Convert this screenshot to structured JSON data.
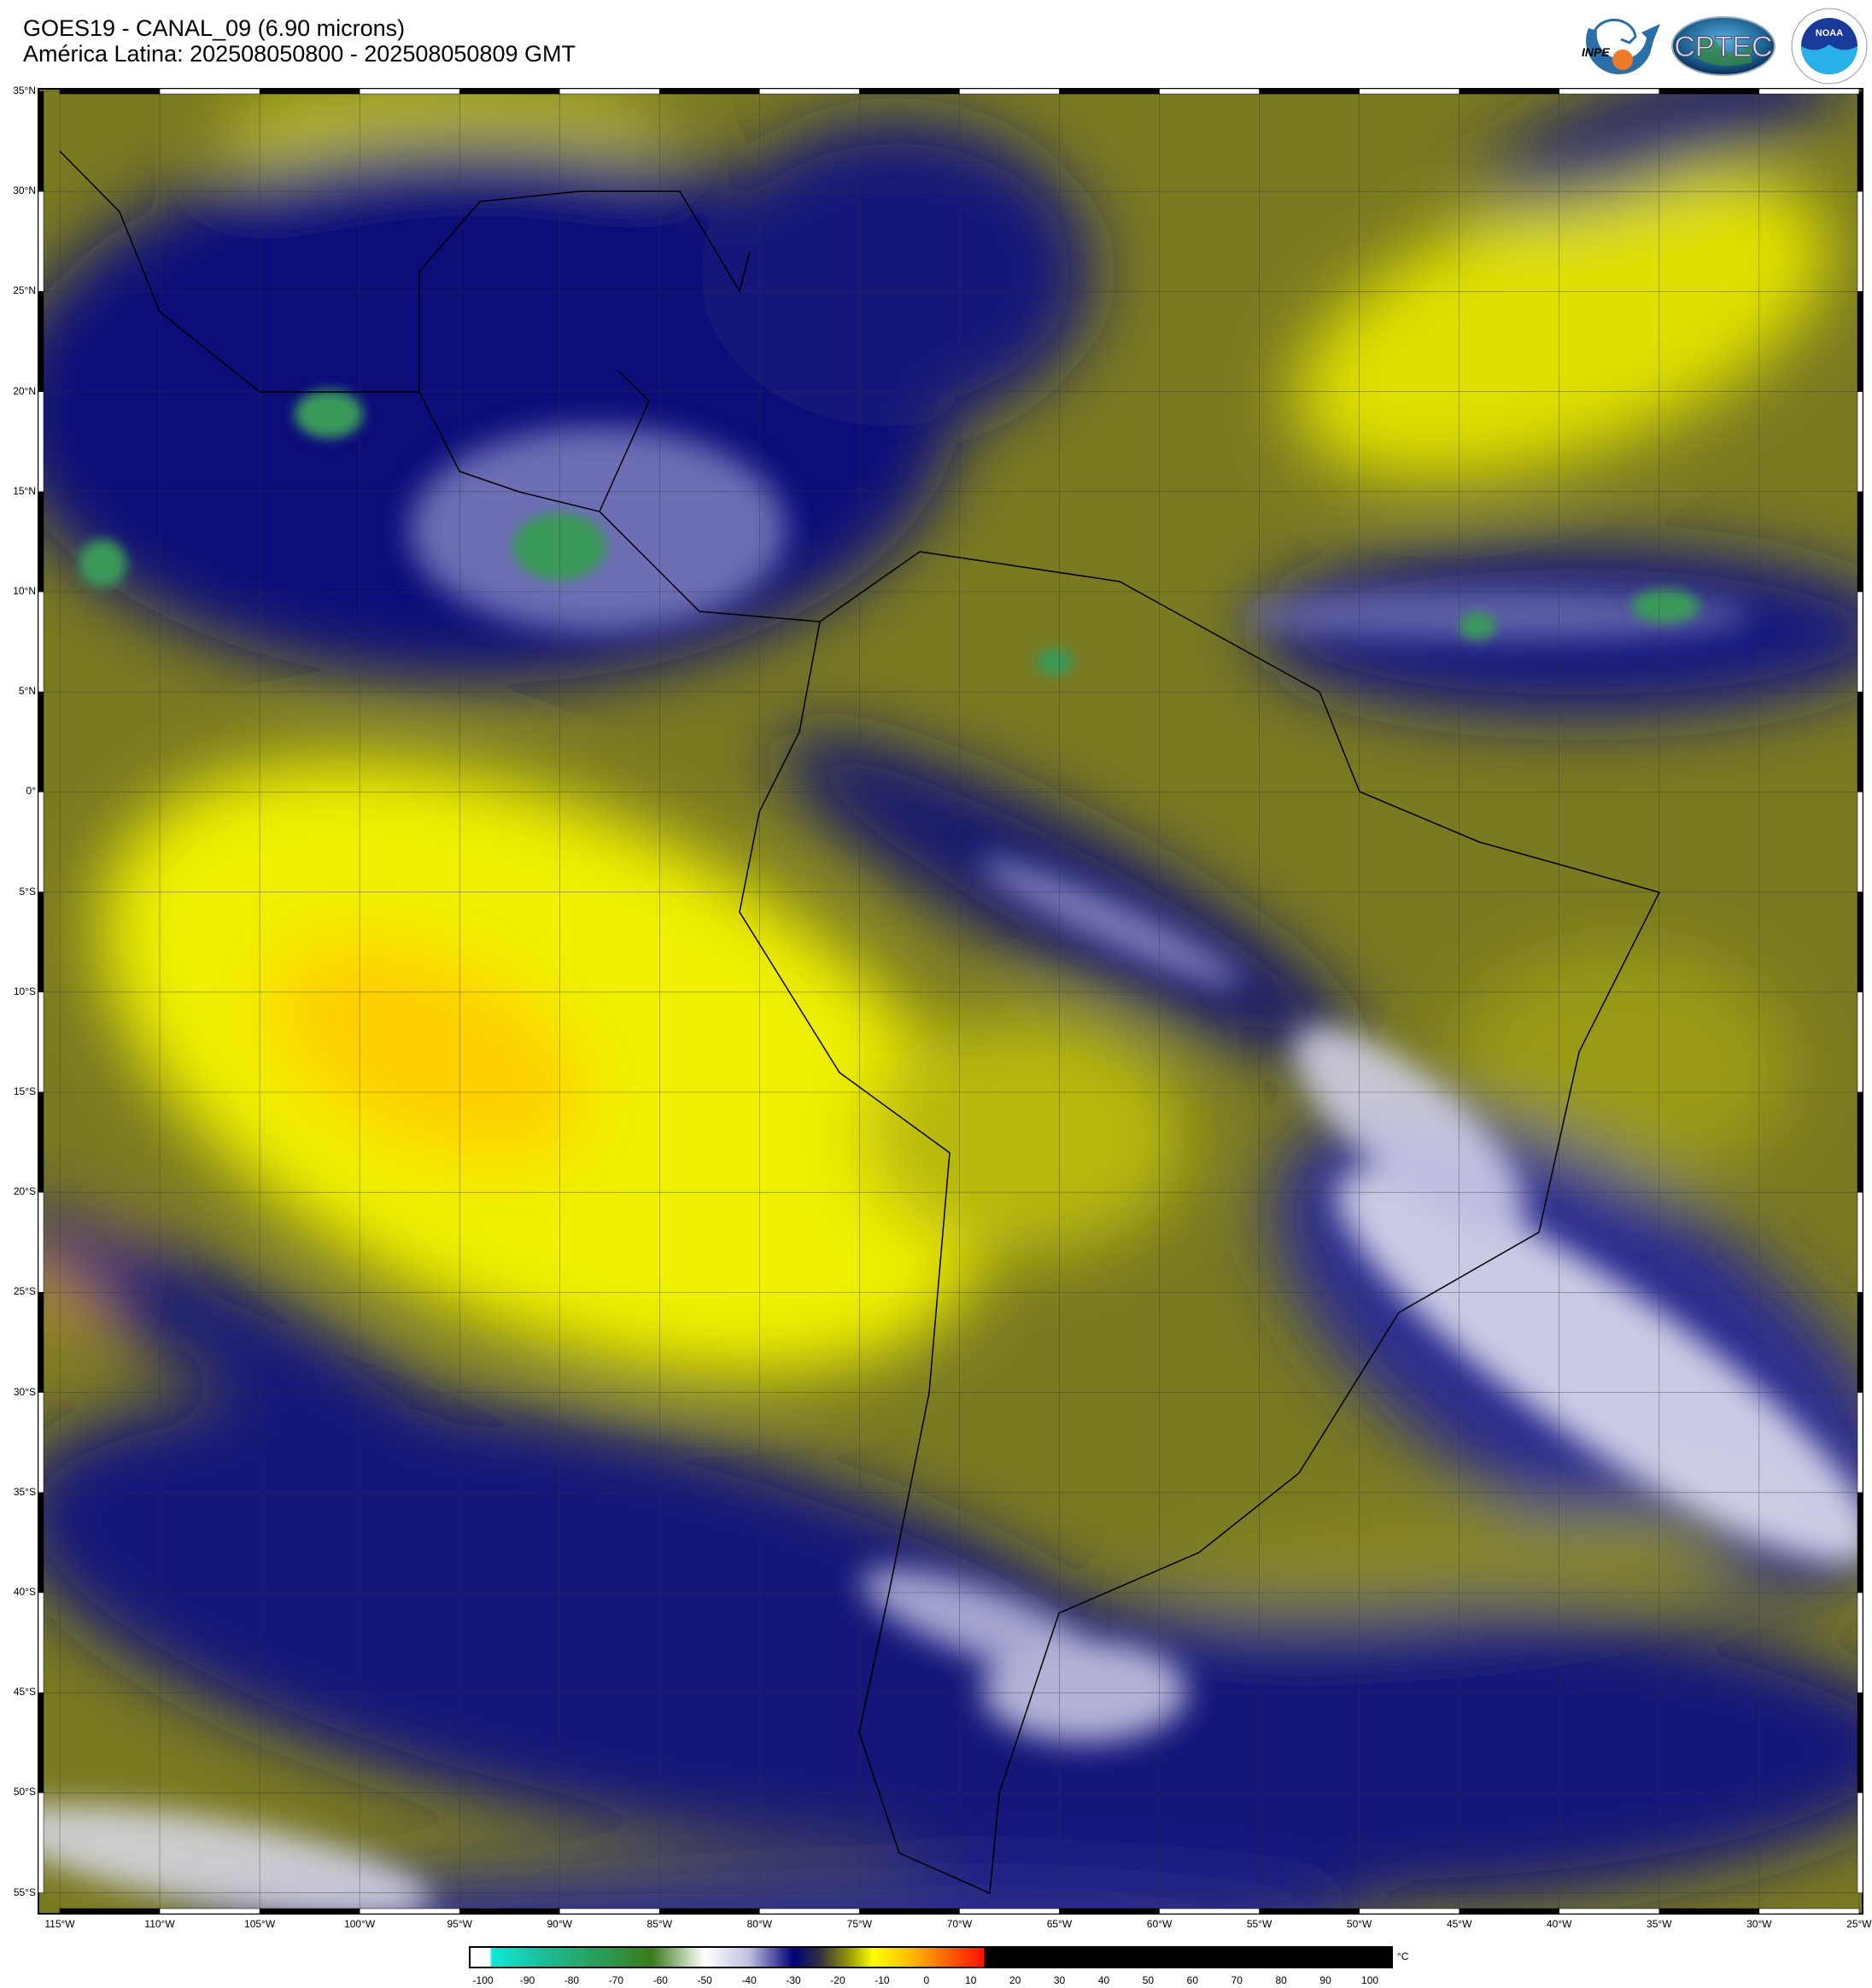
{
  "header": {
    "title_line1": "GOES19 - CANAL_09 (6.90 microns)",
    "title_line2": "América Latina: 202508050800 - 202508050809 GMT"
  },
  "logos": [
    {
      "name": "inpe-logo",
      "text": "INPE"
    },
    {
      "name": "cptec-logo",
      "text": "CPTEC"
    },
    {
      "name": "noaa-logo",
      "text": "NOAA"
    }
  ],
  "map": {
    "lat_labels": [
      "35°N",
      "30°N",
      "25°N",
      "20°N",
      "15°N",
      "10°N",
      "5°N",
      "0°",
      "5°S",
      "10°S",
      "15°S",
      "20°S",
      "25°S",
      "30°S",
      "35°S",
      "40°S",
      "45°S",
      "50°S",
      "55°S"
    ],
    "lon_labels": [
      "115°W",
      "110°W",
      "105°W",
      "100°W",
      "95°W",
      "90°W",
      "85°W",
      "80°W",
      "75°W",
      "70°W",
      "65°W",
      "60°W",
      "55°W",
      "50°W",
      "45°W",
      "40°W",
      "35°W",
      "30°W",
      "25°W"
    ]
  },
  "colorbar": {
    "unit": "°C",
    "ticks": [
      "-100",
      "-90",
      "-80",
      "-70",
      "-60",
      "-50",
      "-40",
      "-30",
      "-20",
      "-10",
      "0",
      "10",
      "20",
      "30",
      "40",
      "50",
      "60",
      "70",
      "80",
      "90",
      "100"
    ],
    "range": [
      -103,
      105
    ],
    "stops": [
      {
        "value": -103,
        "color": "#ffffff"
      },
      {
        "value": -98.5,
        "color": "#ffffff"
      },
      {
        "value": -98,
        "color": "#10e8d8"
      },
      {
        "value": -85,
        "color": "#20b890"
      },
      {
        "value": -72,
        "color": "#2a9a50"
      },
      {
        "value": -62,
        "color": "#3a7a1a"
      },
      {
        "value": -50,
        "color": "#ffffff"
      },
      {
        "value": -40,
        "color": "#c0c0e0"
      },
      {
        "value": -30,
        "color": "#000078"
      },
      {
        "value": -24,
        "color": "#303040"
      },
      {
        "value": -17,
        "color": "#a0a000"
      },
      {
        "value": -12,
        "color": "#ffff00"
      },
      {
        "value": -4,
        "color": "#ffc000"
      },
      {
        "value": 5,
        "color": "#ff6000"
      },
      {
        "value": 13,
        "color": "#ff1000"
      },
      {
        "value": 13.1,
        "color": "#000000"
      },
      {
        "value": 105,
        "color": "#000000"
      }
    ]
  }
}
